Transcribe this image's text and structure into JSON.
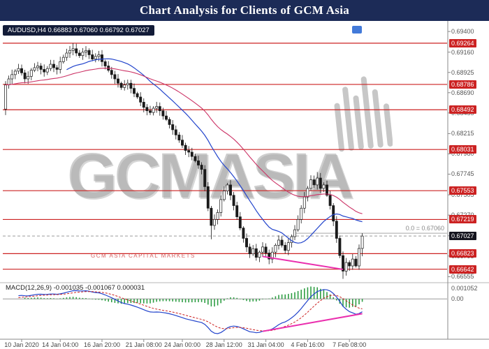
{
  "title": "Chart Analysis for Clients of GCM Asia",
  "watermark": {
    "text": "GCMASIA",
    "caption": "GCM ASIA CAPITAL MARKETS"
  },
  "chart_data": {
    "type": "candlestick",
    "symbol": "AUDUSD",
    "timeframe": "H4",
    "ohlc_readout": "AUDUSD,H4 0.66883 0.67060 0.66792 0.67027",
    "current_price": "0.67027",
    "price_range": {
      "top": 0.6949,
      "bottom": 0.6651
    },
    "y_ticks": [
      "0.69400",
      "0.69160",
      "0.68925",
      "0.68690",
      "0.68455",
      "0.68215",
      "0.67980",
      "0.67745",
      "0.67505",
      "0.67270",
      "0.67030",
      "0.66795",
      "0.66555"
    ],
    "levels": [
      "0.69264",
      "0.68786",
      "0.68492",
      "0.68031",
      "0.67553",
      "0.67219",
      "0.66823",
      "0.66642"
    ],
    "fib_level": {
      "value": 0.6706,
      "label": "0.0 = 0.67060"
    },
    "x_labels": [
      {
        "label": "10 Jan 2020",
        "i": 5
      },
      {
        "label": "14 Jan 04:00",
        "i": 17
      },
      {
        "label": "16 Jan 20:00",
        "i": 30
      },
      {
        "label": "21 Jan 08:00",
        "i": 43
      },
      {
        "label": "24 Jan 00:00",
        "i": 55
      },
      {
        "label": "28 Jan 12:00",
        "i": 68
      },
      {
        "label": "31 Jan 04:00",
        "i": 81
      },
      {
        "label": "4 Feb 16:00",
        "i": 94
      },
      {
        "label": "7 Feb 08:00",
        "i": 107
      }
    ],
    "closes": [
      0.6878,
      0.6885,
      0.689,
      0.6894,
      0.6897,
      0.6892,
      0.6885,
      0.6888,
      0.6895,
      0.6898,
      0.69,
      0.6896,
      0.6893,
      0.6897,
      0.6902,
      0.6898,
      0.6896,
      0.6905,
      0.691,
      0.6915,
      0.6918,
      0.692,
      0.6915,
      0.6912,
      0.6916,
      0.6918,
      0.6913,
      0.6908,
      0.6911,
      0.6913,
      0.6905,
      0.69,
      0.6895,
      0.689,
      0.6885,
      0.688,
      0.6875,
      0.6878,
      0.688,
      0.6874,
      0.6868,
      0.6864,
      0.6858,
      0.6852,
      0.6848,
      0.6846,
      0.6851,
      0.6853,
      0.6848,
      0.6842,
      0.6838,
      0.6832,
      0.6826,
      0.682,
      0.6814,
      0.6808,
      0.6802,
      0.68,
      0.6795,
      0.679,
      0.6785,
      0.678,
      0.676,
      0.6735,
      0.6715,
      0.6722,
      0.673,
      0.6745,
      0.6755,
      0.6762,
      0.675,
      0.6738,
      0.6725,
      0.6712,
      0.67,
      0.669,
      0.6682,
      0.6688,
      0.6678,
      0.6684,
      0.669,
      0.6683,
      0.6676,
      0.6684,
      0.6692,
      0.6698,
      0.6692,
      0.6686,
      0.6695,
      0.6702,
      0.671,
      0.6722,
      0.6735,
      0.6748,
      0.6758,
      0.6768,
      0.6762,
      0.677,
      0.6758,
      0.6762,
      0.675,
      0.6738,
      0.672,
      0.67,
      0.668,
      0.6662,
      0.6672,
      0.6668,
      0.6676,
      0.6668,
      0.66883,
      0.67027
    ],
    "candle_overrides": {
      "0": {
        "o": 0.685,
        "l": 0.6843
      },
      "21": {
        "h": 0.69264
      },
      "25": {
        "h": 0.6923
      },
      "64": {
        "l": 0.6699
      },
      "82": {
        "l": 0.667
      },
      "97": {
        "h": 0.6777
      },
      "105": {
        "l": 0.6653
      },
      "111": {
        "h": 0.6706,
        "l": 0.66792
      }
    },
    "moving_averages": [
      {
        "name": "MA fast",
        "type": "sma",
        "period": 20
      },
      {
        "name": "MA slow",
        "type": "ema",
        "period": 50
      }
    ],
    "trendlines": [
      {
        "panel": "main",
        "i1": 80,
        "v1": 0.6679,
        "i2": 105,
        "v2": 0.6664
      },
      {
        "panel": "macd",
        "i1": 80,
        "v1": -0.0033,
        "i2": 111,
        "v2": -0.0015
      }
    ],
    "macd": {
      "readout": "MACD(12,26,9) -0.001035 -0.001067 0.000031",
      "fast": 12,
      "slow": 26,
      "signal": 9,
      "axis_ticks": [
        {
          "label": "0.001052",
          "value": 0.001052
        },
        {
          "label": "0.00",
          "value": 0
        }
      ]
    },
    "colors": {
      "level": "#cc2222",
      "ma_fast": "#2244cc",
      "ma_slow": "#cc3366",
      "macd_line": "#2244cc",
      "signal_line": "#cc2222",
      "histogram": "#2f9e44",
      "trendline": "#ea2fae",
      "title_bar": "#1c2b57"
    }
  }
}
